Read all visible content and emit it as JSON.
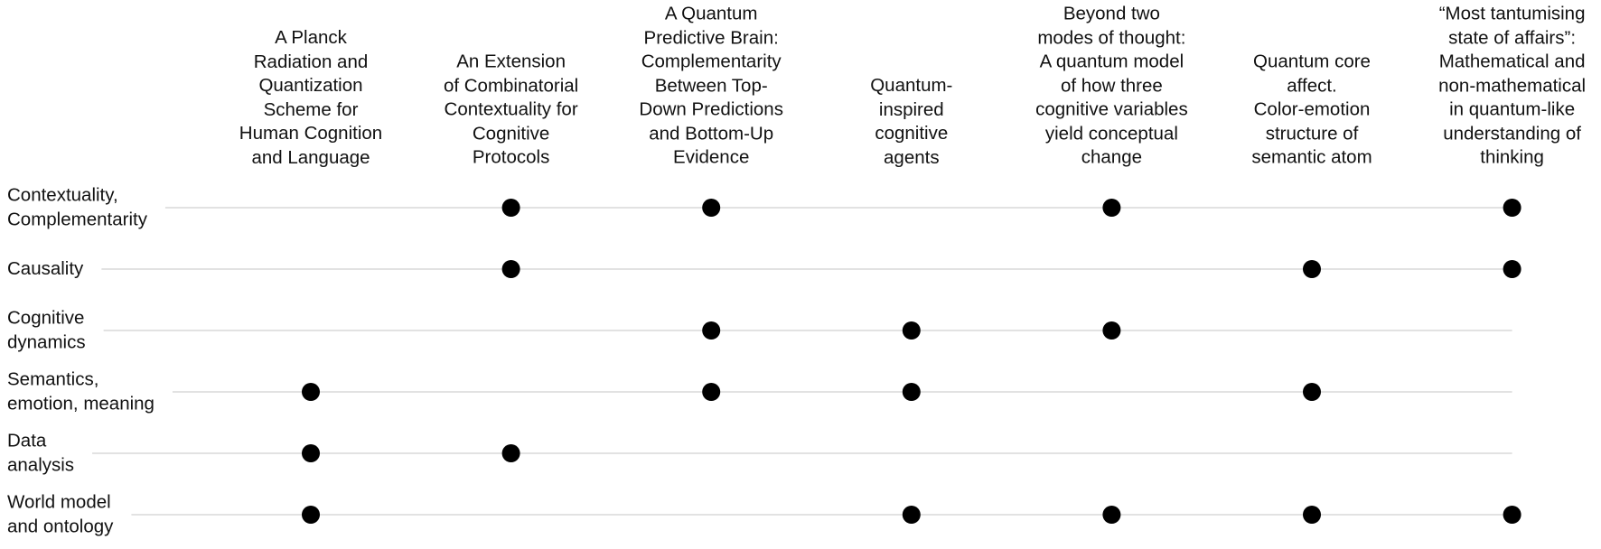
{
  "columns": [
    "A Planck\nRadiation and\nQuantization\nScheme for\nHuman Cognition\nand Language",
    "An Extension\nof Combinatorial\nContextuality for\nCognitive\nProtocols",
    "A Quantum\nPredictive Brain:\nComplementarity\nBetween Top-\nDown Predictions\nand Bottom-Up\nEvidence",
    "Quantum-\ninspired\ncognitive\nagents",
    "Beyond two\nmodes of thought:\nA quantum model\nof how three\ncognitive variables\nyield conceptual\nchange",
    "Quantum core\naffect.\nColor-emotion\nstructure of\nsemantic atom",
    "“Most tantumising\nstate of affairs”:\nMathematical and\nnon-mathematical\nin quantum-like\nunderstanding of\nthinking"
  ],
  "rows": [
    {
      "label": "Contextuality,\nComplementarity",
      "marks": [
        0,
        1,
        1,
        0,
        1,
        0,
        1
      ]
    },
    {
      "label": "Causality",
      "marks": [
        0,
        1,
        0,
        0,
        0,
        1,
        1
      ]
    },
    {
      "label": "Cognitive\ndynamics",
      "marks": [
        0,
        0,
        1,
        1,
        1,
        0,
        0
      ]
    },
    {
      "label": "Semantics,\nemotion, meaning",
      "marks": [
        1,
        0,
        1,
        1,
        0,
        1,
        0
      ]
    },
    {
      "label": "Data\nanalysis",
      "marks": [
        1,
        1,
        0,
        0,
        0,
        0,
        0
      ]
    },
    {
      "label": "World model\nand ontology",
      "marks": [
        1,
        0,
        0,
        1,
        1,
        1,
        1
      ]
    }
  ]
}
